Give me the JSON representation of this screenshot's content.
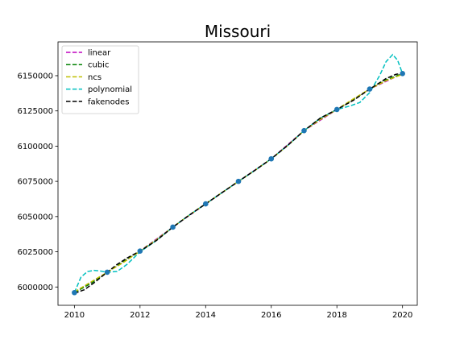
{
  "chart_data": {
    "type": "line",
    "title": "Missouri",
    "xlabel": "",
    "ylabel": "",
    "xlim": [
      2009.5,
      2020.45
    ],
    "ylim": [
      5987000,
      6174000
    ],
    "x_ticks": [
      2010,
      2012,
      2014,
      2016,
      2018,
      2020
    ],
    "y_ticks": [
      6000000,
      6025000,
      6050000,
      6075000,
      6100000,
      6125000,
      6150000
    ],
    "grid": false,
    "legend_position": "top-left",
    "observed": {
      "x": [
        2010,
        2011,
        2012,
        2013,
        2014,
        2015,
        2016,
        2017,
        2018,
        2019,
        2020
      ],
      "y": [
        5996000,
        6010500,
        6025500,
        6042500,
        6059000,
        6075000,
        6091000,
        6111000,
        6126000,
        6140500,
        6151500
      ],
      "color": "#1f77b4"
    },
    "series": [
      {
        "name": "linear",
        "color": "#bf00bf",
        "x": [
          2010,
          2011,
          2012,
          2013,
          2014,
          2015,
          2016,
          2017,
          2018,
          2019,
          2020
        ],
        "y": [
          5996000,
          6010500,
          6025500,
          6042500,
          6059000,
          6075000,
          6091000,
          6111000,
          6126000,
          6140500,
          6151500
        ]
      },
      {
        "name": "cubic",
        "color": "#008000",
        "x": [
          2010,
          2010.5,
          2011,
          2011.5,
          2012,
          2012.5,
          2013,
          2013.5,
          2014,
          2014.5,
          2015,
          2015.5,
          2016,
          2016.5,
          2017,
          2017.5,
          2018,
          2018.5,
          2019,
          2019.5,
          2020
        ],
        "y": [
          5996000,
          6002500,
          6010500,
          6018000,
          6025500,
          6033500,
          6042500,
          6051000,
          6059000,
          6067000,
          6075000,
          6082800,
          6091000,
          6100500,
          6111000,
          6119500,
          6126000,
          6133000,
          6140500,
          6147000,
          6151500
        ]
      },
      {
        "name": "ncs",
        "color": "#bfbf00",
        "x": [
          2010,
          2010.5,
          2011,
          2011.5,
          2012,
          2012.5,
          2013,
          2013.5,
          2014,
          2014.5,
          2015,
          2015.5,
          2016,
          2016.5,
          2017,
          2017.5,
          2018,
          2018.5,
          2019,
          2019.5,
          2020
        ],
        "y": [
          5996500,
          6003500,
          6010500,
          6017500,
          6025500,
          6033500,
          6042500,
          6051000,
          6059000,
          6067000,
          6075000,
          6082800,
          6091000,
          6100500,
          6111000,
          6119000,
          6126000,
          6133500,
          6140500,
          6146500,
          6151000
        ]
      },
      {
        "name": "polynomial",
        "color": "#00bfbf",
        "x": [
          2010,
          2010.2,
          2010.4,
          2010.6,
          2010.8,
          2011,
          2011.3,
          2011.6,
          2012,
          2012.5,
          2013,
          2013.5,
          2014,
          2014.5,
          2015,
          2015.5,
          2016,
          2016.5,
          2017,
          2017.5,
          2018,
          2018.4,
          2018.7,
          2019,
          2019.3,
          2019.5,
          2019.7,
          2019.85,
          2020
        ],
        "y": [
          5996000,
          6007000,
          6011000,
          6011800,
          6011300,
          6010500,
          6011000,
          6016000,
          6025000,
          6033000,
          6042500,
          6051000,
          6059000,
          6067000,
          6075000,
          6082800,
          6091000,
          6100500,
          6111000,
          6120000,
          6126000,
          6128500,
          6131000,
          6138000,
          6150000,
          6160000,
          6165000,
          6161000,
          6151500
        ]
      },
      {
        "name": "fakenodes",
        "color": "#000000",
        "x": [
          2010,
          2010.3,
          2010.6,
          2011,
          2011.3,
          2011.6,
          2012,
          2012.5,
          2013,
          2013.5,
          2014,
          2014.5,
          2015,
          2015.5,
          2016,
          2016.5,
          2017,
          2017.5,
          2018,
          2018.5,
          2019,
          2019.5,
          2019.8,
          2020
        ],
        "y": [
          5995500,
          5998000,
          6003000,
          6010500,
          6016000,
          6020500,
          6025500,
          6033000,
          6042500,
          6051000,
          6059000,
          6067000,
          6075000,
          6082800,
          6091000,
          6100500,
          6111000,
          6120000,
          6126000,
          6132500,
          6140500,
          6148000,
          6151000,
          6151500
        ]
      }
    ]
  }
}
